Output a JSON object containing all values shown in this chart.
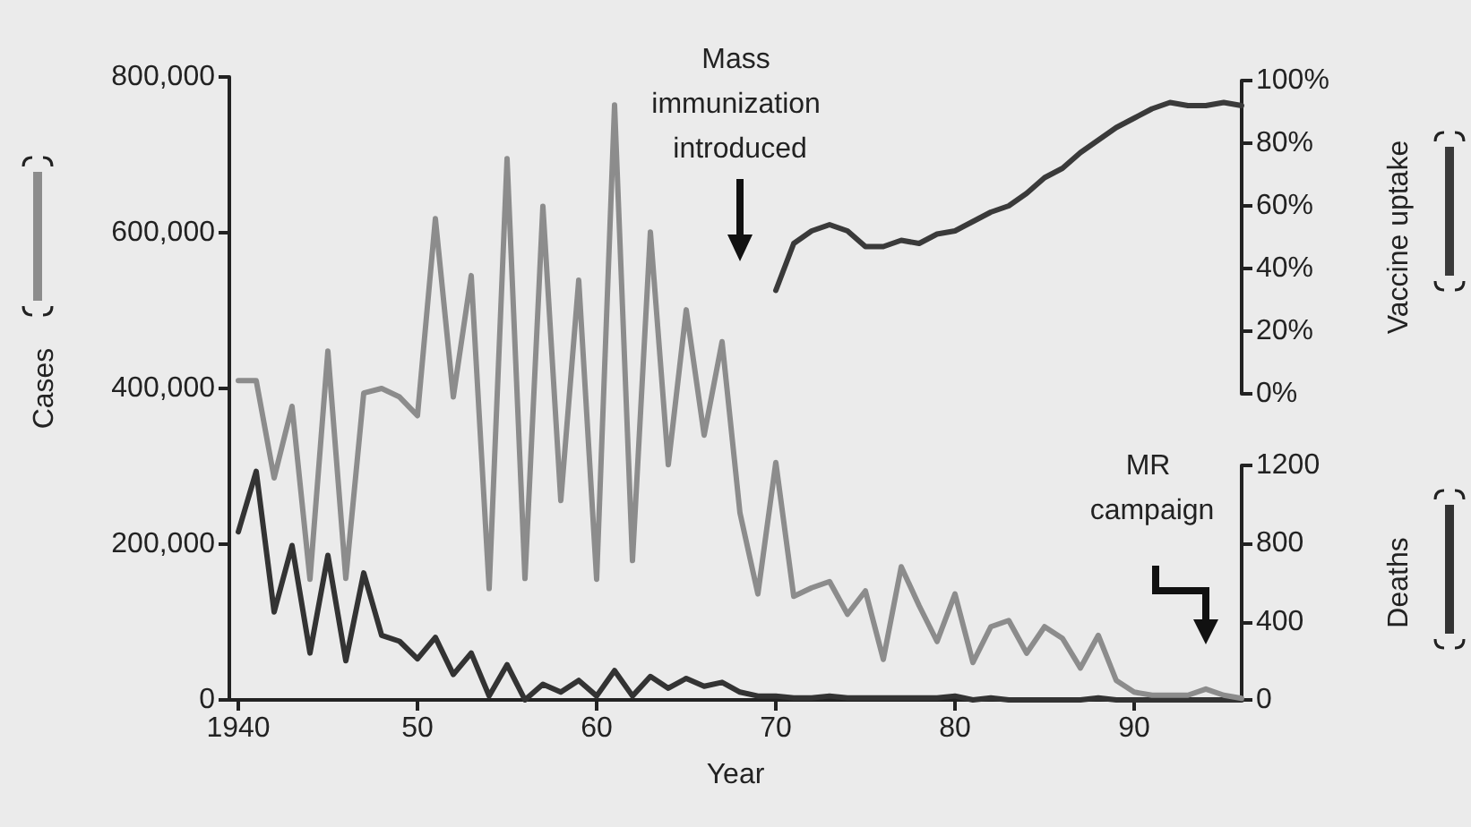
{
  "chart_data": {
    "type": "line",
    "xlabel": "Year",
    "ylabel": "Cases",
    "y2label": "Vaccine uptake",
    "y3label": "Deaths",
    "x": [
      1940,
      1941,
      1942,
      1943,
      1944,
      1945,
      1946,
      1947,
      1948,
      1949,
      1950,
      1951,
      1952,
      1953,
      1954,
      1955,
      1956,
      1957,
      1958,
      1959,
      1960,
      1961,
      1962,
      1963,
      1964,
      1965,
      1966,
      1967,
      1968,
      1969,
      1970,
      1971,
      1972,
      1973,
      1974,
      1975,
      1976,
      1977,
      1978,
      1979,
      1980,
      1981,
      1982,
      1983,
      1984,
      1985,
      1986,
      1987,
      1988,
      1989,
      1990,
      1991,
      1992,
      1993,
      1994,
      1995,
      1996
    ],
    "xlim": [
      1939.5,
      1996
    ],
    "xticks": [
      1940,
      {
        "value": 1950,
        "label": "50"
      },
      {
        "value": 1960,
        "label": "60"
      },
      {
        "value": 1970,
        "label": "70"
      },
      {
        "value": 1980,
        "label": "80"
      },
      {
        "value": 1990,
        "label": "90"
      }
    ],
    "ylim": [
      0,
      800000
    ],
    "yticks": [
      0,
      {
        "value": 200000,
        "label": "200,000"
      },
      {
        "value": 400000,
        "label": "400,000"
      },
      {
        "value": 600000,
        "label": "600,000"
      },
      {
        "value": 800000,
        "label": "800,000"
      }
    ],
    "y2lim": [
      0,
      100
    ],
    "y2ticks": [
      {
        "value": 0,
        "label": "0%"
      },
      {
        "value": 20,
        "label": "20%"
      },
      {
        "value": 40,
        "label": "40%"
      },
      {
        "value": 60,
        "label": "60%"
      },
      {
        "value": 80,
        "label": "80%"
      },
      {
        "value": 100,
        "label": "100%"
      }
    ],
    "y3lim": [
      0,
      1200
    ],
    "y3ticks": [
      0,
      400,
      800,
      1200
    ],
    "series": [
      {
        "color": "#8c8c8c",
        "values": [
          410000,
          410000,
          285000,
          377000,
          155000,
          448000,
          156000,
          394000,
          400000,
          389000,
          365000,
          618000,
          389000,
          545000,
          143000,
          695000,
          156000,
          634000,
          256000,
          539000,
          155000,
          764000,
          179000,
          601000,
          302000,
          501000,
          340000,
          460000,
          240000,
          136000,
          305000,
          133000,
          144000,
          152000,
          110000,
          140000,
          52000,
          171000,
          121000,
          75000,
          136000,
          48000,
          94000,
          102000,
          60000,
          94000,
          79000,
          41000,
          83000,
          25000,
          10000,
          6000,
          6000,
          6000,
          14000,
          6000,
          2000
        ]
      },
      {
        "axis": "y3",
        "color": "#333333",
        "values": [
          860,
          1170,
          450,
          790,
          240,
          740,
          200,
          650,
          330,
          300,
          210,
          320,
          130,
          240,
          20,
          180,
          0,
          80,
          40,
          100,
          20,
          150,
          20,
          120,
          60,
          110,
          70,
          90,
          40,
          20,
          20,
          10,
          10,
          20,
          10,
          10,
          10,
          10,
          10,
          10,
          20,
          0,
          10,
          0,
          0,
          0,
          0,
          0,
          10,
          0,
          0,
          0,
          0,
          0,
          0,
          0,
          0
        ]
      },
      {
        "axis": "y2",
        "color": "#3a3a3a",
        "x": [
          1970,
          1971,
          1972,
          1973,
          1974,
          1975,
          1976,
          1977,
          1978,
          1979,
          1980,
          1981,
          1982,
          1983,
          1984,
          1985,
          1986,
          1987,
          1988,
          1989,
          1990,
          1991,
          1992,
          1993,
          1994,
          1995,
          1996
        ],
        "values": [
          33,
          48,
          52,
          54,
          52,
          47,
          47,
          49,
          48,
          51,
          52,
          55,
          58,
          60,
          64,
          69,
          72,
          77,
          81,
          85,
          88,
          91,
          93,
          92,
          92,
          93,
          92
        ]
      }
    ],
    "grid": false,
    "marker": "none",
    "line_style": "solid",
    "annotations": [
      "Mass immunization introduced",
      "MR campaign"
    ]
  }
}
